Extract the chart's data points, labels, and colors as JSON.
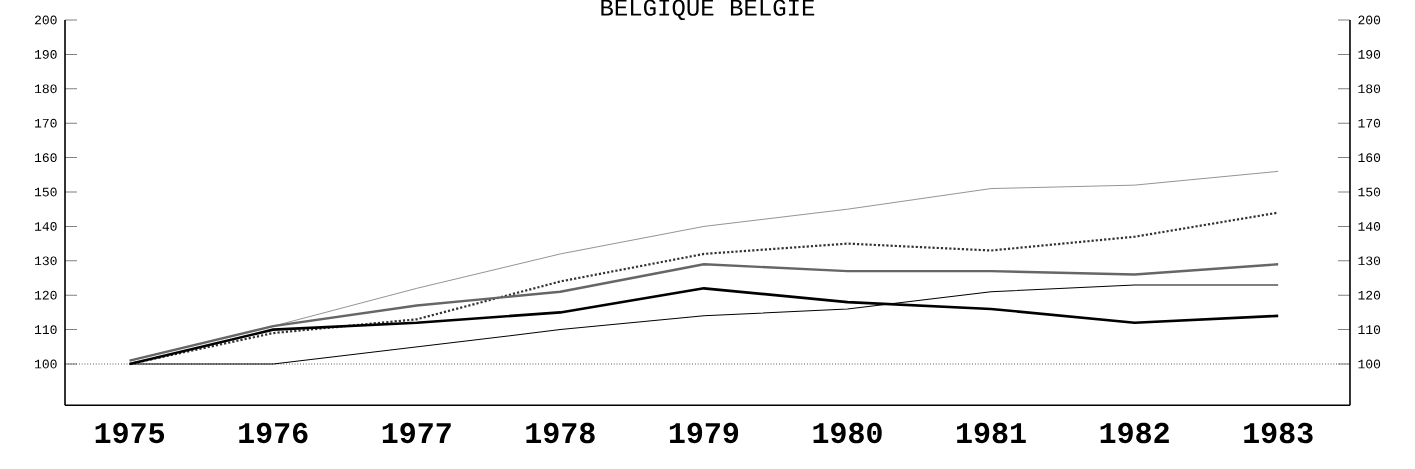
{
  "chart_data": {
    "type": "line",
    "title": "BELGIQUE BELGIE",
    "categories": [
      "1975",
      "1976",
      "1977",
      "1978",
      "1979",
      "1980",
      "1981",
      "1982",
      "1983"
    ],
    "series": [
      {
        "color": "#888888",
        "line_style": "solid",
        "values": [
          101,
          111,
          122,
          132,
          140,
          145,
          151,
          152,
          156
        ]
      },
      {
        "color": "#333333",
        "line_style": "dotted",
        "values": [
          100,
          109,
          113,
          124,
          132,
          135,
          133,
          137,
          144
        ]
      },
      {
        "color": "#666666",
        "line_style": "solid",
        "values": [
          101,
          111,
          117,
          121,
          129,
          127,
          127,
          126,
          129
        ]
      },
      {
        "color": "#000000",
        "line_style": "solid",
        "values": [
          100,
          110,
          112,
          115,
          122,
          118,
          116,
          112,
          114
        ]
      },
      {
        "color": "#000000",
        "line_style": "solid",
        "values": [
          100,
          100,
          105,
          110,
          114,
          116,
          121,
          123,
          123
        ]
      }
    ],
    "ylim": [
      88,
      200
    ],
    "yticks": [
      100,
      110,
      120,
      130,
      140,
      150,
      160,
      170,
      180,
      190,
      200
    ],
    "y2lim": [
      88,
      200
    ],
    "y2ticks": [
      100,
      110,
      120,
      130,
      140,
      150,
      160,
      170,
      180,
      190,
      200
    ],
    "ref_lines": [
      {
        "axis": "y",
        "value": 100,
        "line_style": "dotted",
        "color": "#000000"
      }
    ],
    "grid": false,
    "marker": "none"
  }
}
